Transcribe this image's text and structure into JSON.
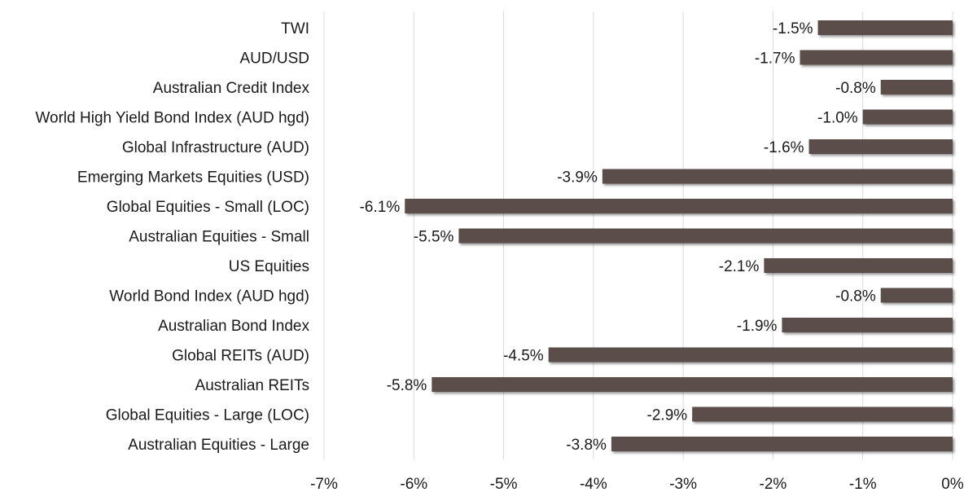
{
  "chart_data": {
    "type": "bar",
    "orientation": "horizontal",
    "categories": [
      "TWI",
      "AUD/USD",
      "Australian Credit Index",
      "World High Yield Bond Index (AUD hgd)",
      "Global Infrastructure (AUD)",
      "Emerging Markets Equities (USD)",
      "Global Equities - Small (LOC)",
      "Australian Equities - Small",
      "US Equities",
      "World Bond Index (AUD hgd)",
      "Australian Bond Index",
      "Global REITs (AUD)",
      "Australian REITs",
      "Global Equities - Large (LOC)",
      "Australian Equities - Large"
    ],
    "values": [
      -1.5,
      -1.7,
      -0.8,
      -1.0,
      -1.6,
      -3.9,
      -6.1,
      -5.5,
      -2.1,
      -0.8,
      -1.9,
      -4.5,
      -5.8,
      -2.9,
      -3.8
    ],
    "data_labels": [
      "-1.5%",
      "-1.7%",
      "-0.8%",
      "-1.0%",
      "-1.6%",
      "-3.9%",
      "-6.1%",
      "-5.5%",
      "-2.1%",
      "-0.8%",
      "-1.9%",
      "-4.5%",
      "-5.8%",
      "-2.9%",
      "-3.8%"
    ],
    "xlim": [
      -7,
      0
    ],
    "x_ticks": [
      -7,
      -6,
      -5,
      -4,
      -3,
      -2,
      -1,
      0
    ],
    "x_tick_labels": [
      "-7%",
      "-6%",
      "-5%",
      "-4%",
      "-3%",
      "-2%",
      "-1%",
      "0%"
    ],
    "grid": "vertical",
    "legend": "none",
    "bar_color": "#5b4e4a"
  }
}
